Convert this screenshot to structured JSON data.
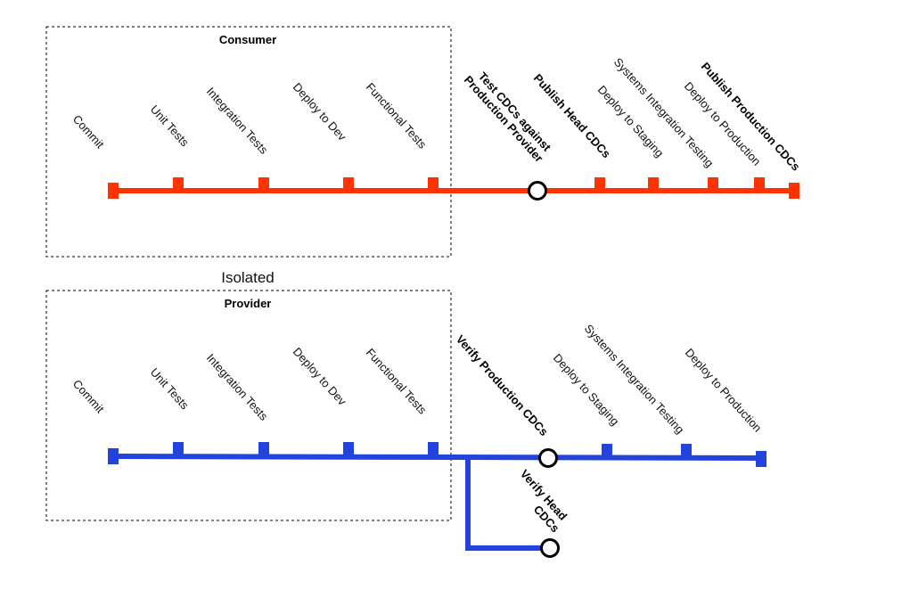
{
  "consumer": {
    "title": "Consumer",
    "color": "#ff3300",
    "stages": [
      {
        "label": "Commit",
        "bold": false
      },
      {
        "label": "Unit Tests",
        "bold": false
      },
      {
        "label": "Integration Tests",
        "bold": false
      },
      {
        "label": "Deploy to Dev",
        "bold": false
      },
      {
        "label": "Functional Tests",
        "bold": false
      },
      {
        "label": "Test CDCs against",
        "label2": "Production Provider",
        "bold": true
      },
      {
        "label": "Publish Head CDCs",
        "bold": true
      },
      {
        "label": "Deploy to Staging",
        "bold": false
      },
      {
        "label": "Systems Integration Testing",
        "bold": false
      },
      {
        "label": "Deploy to Production",
        "bold": false
      },
      {
        "label": "Publish Production CDCs",
        "bold": true
      }
    ]
  },
  "isolated_label": "Isolated",
  "provider": {
    "title": "Provider",
    "color": "#2244dd",
    "stages": [
      {
        "label": "Commit",
        "bold": false
      },
      {
        "label": "Unit Tests",
        "bold": false
      },
      {
        "label": "Integration Tests",
        "bold": false
      },
      {
        "label": "Deploy to Dev",
        "bold": false
      },
      {
        "label": "Functional Tests",
        "bold": false
      },
      {
        "label": "Verify Production CDCs",
        "bold": true
      },
      {
        "label": "Deploy to Staging",
        "bold": false
      },
      {
        "label": "Systems Integration Testing",
        "bold": false
      },
      {
        "label": "Deploy to Production",
        "bold": false
      }
    ],
    "branch": {
      "label": "Verify Head",
      "label2": "CDCs",
      "bold": true
    }
  }
}
